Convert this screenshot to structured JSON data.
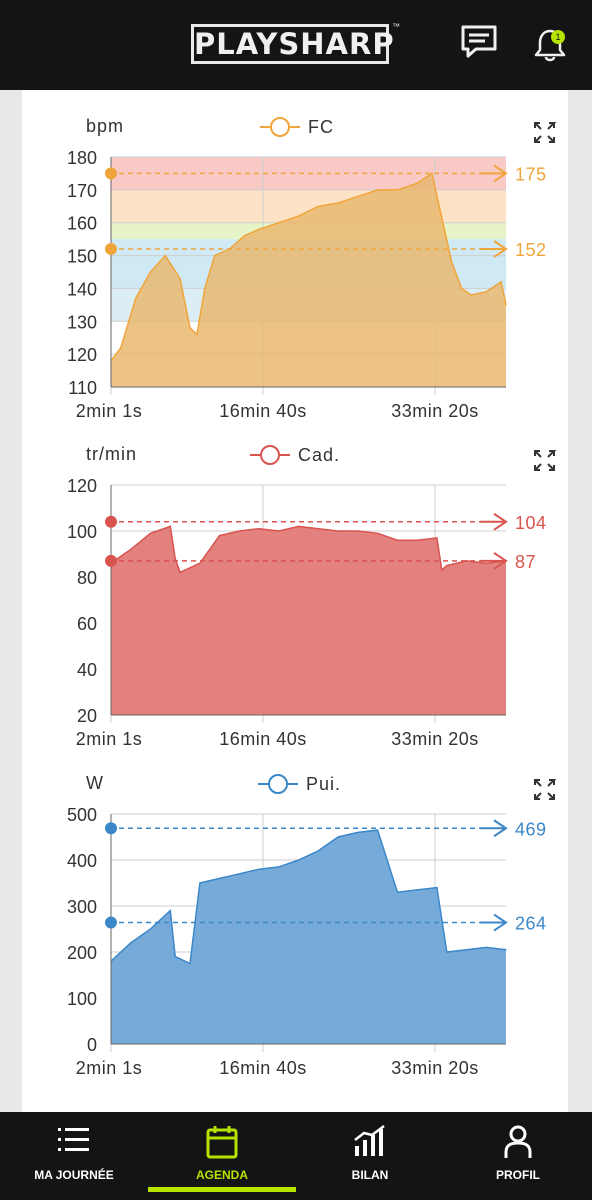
{
  "header": {
    "logo_text": "PLAYSHARP",
    "logo_tm": "™",
    "notification_count": "1",
    "icons": [
      "chat-icon",
      "bell-icon"
    ]
  },
  "charts": [
    {
      "id": "hr",
      "unit": "bpm",
      "legend": "FC",
      "color": "#f0a53a",
      "fill": "#e9b970",
      "fill_opacity": 0.85,
      "ylim": [
        110,
        180
      ],
      "yticks": [
        110,
        120,
        130,
        140,
        150,
        160,
        170,
        180
      ],
      "xticks": [
        "2min 1s",
        "16min 40s",
        "33min 20s"
      ],
      "markers": [
        {
          "value": 175,
          "label": "175"
        },
        {
          "value": 152,
          "label": "152"
        }
      ],
      "zones": [
        {
          "from": 170,
          "to": 180,
          "color": "#f9c9c6"
        },
        {
          "from": 160,
          "to": 170,
          "color": "#fde3c6"
        },
        {
          "from": 155,
          "to": 160,
          "color": "#e6f4c8"
        },
        {
          "from": 140,
          "to": 155,
          "color": "#cfeaf4"
        },
        {
          "from": 130,
          "to": 140,
          "color": "#dbeef6"
        }
      ]
    },
    {
      "id": "cad",
      "unit": "tr/min",
      "legend": "Cad.",
      "color": "#d9534f",
      "fill": "#e07a77",
      "fill_opacity": 0.95,
      "ylim": [
        20,
        120
      ],
      "yticks": [
        20,
        40,
        60,
        80,
        100,
        120
      ],
      "xticks": [
        "2min 1s",
        "16min 40s",
        "33min 20s"
      ],
      "markers": [
        {
          "value": 104,
          "label": "104"
        },
        {
          "value": 87,
          "label": "87"
        }
      ],
      "zones": []
    },
    {
      "id": "pow",
      "unit": "W",
      "legend": "Pui.",
      "color": "#3b87c8",
      "fill": "#6fa5d6",
      "fill_opacity": 0.95,
      "ylim": [
        0,
        500
      ],
      "yticks": [
        0,
        100,
        200,
        300,
        400,
        500
      ],
      "xticks": [
        "2min 1s",
        "16min 40s",
        "33min 20s"
      ],
      "markers": [
        {
          "value": 469,
          "label": "469"
        },
        {
          "value": 264,
          "label": "264"
        }
      ],
      "zones": []
    }
  ],
  "chart_data": [
    {
      "type": "area",
      "ylabel": "bpm",
      "series": [
        {
          "name": "FC",
          "x": [
            2.0,
            3.0,
            4.5,
            6.0,
            7.5,
            9.0,
            10.0,
            10.7,
            11.5,
            12.5,
            14.0,
            15.5,
            17.0,
            19.0,
            21.0,
            23.0,
            25.0,
            27.0,
            29.0,
            31.0,
            33.0,
            34.5,
            36.5,
            37.5,
            38.5,
            40.0,
            41.5,
            42.0
          ],
          "y": [
            118,
            122,
            137,
            145,
            150,
            143,
            128,
            126,
            140,
            150,
            152,
            156,
            158,
            160,
            162,
            165,
            166,
            168,
            170,
            170,
            172,
            175,
            148,
            140,
            138,
            139,
            142,
            135
          ]
        }
      ],
      "ylim": [
        110,
        180
      ],
      "yticks": [
        110,
        120,
        130,
        140,
        150,
        160,
        170,
        180
      ],
      "xticks": [
        "2min 1s",
        "16min 40s",
        "33min 20s"
      ]
    },
    {
      "type": "area",
      "ylabel": "tr/min",
      "series": [
        {
          "name": "Cad.",
          "x": [
            2.0,
            4.0,
            6.0,
            8.0,
            8.5,
            9.0,
            11.0,
            13.0,
            15.0,
            17.0,
            19.0,
            21.0,
            23.0,
            25.0,
            27.0,
            29.0,
            31.0,
            33.0,
            35.0,
            35.5,
            36.0,
            38.0,
            40.0,
            42.0
          ],
          "y": [
            86,
            92,
            99,
            102,
            88,
            82,
            86,
            98,
            100,
            101,
            100,
            102,
            101,
            100,
            100,
            99,
            96,
            96,
            97,
            83,
            85,
            87,
            86,
            87
          ]
        }
      ],
      "ylim": [
        20,
        120
      ],
      "yticks": [
        20,
        40,
        60,
        80,
        100,
        120
      ],
      "xticks": [
        "2min 1s",
        "16min 40s",
        "33min 20s"
      ]
    },
    {
      "type": "area",
      "ylabel": "W",
      "series": [
        {
          "name": "Pui.",
          "x": [
            2.0,
            4.0,
            6.0,
            8.0,
            8.5,
            10.0,
            11.0,
            13.0,
            15.0,
            17.0,
            19.0,
            21.0,
            23.0,
            25.0,
            27.0,
            29.0,
            31.0,
            33.0,
            35.0,
            36.0,
            38.0,
            40.0,
            42.0
          ],
          "y": [
            180,
            220,
            250,
            290,
            190,
            175,
            350,
            360,
            370,
            380,
            385,
            400,
            420,
            450,
            460,
            465,
            330,
            335,
            340,
            200,
            205,
            210,
            205
          ]
        }
      ],
      "ylim": [
        0,
        500
      ],
      "yticks": [
        0,
        100,
        200,
        300,
        400,
        500
      ],
      "xticks": [
        "2min 1s",
        "16min 40s",
        "33min 20s"
      ]
    }
  ],
  "nav": [
    {
      "label": "MA JOURNÉE",
      "icon": "list-icon"
    },
    {
      "label": "AGENDA",
      "icon": "calendar-icon",
      "active": true
    },
    {
      "label": "BILAN",
      "icon": "bar-chart-icon"
    },
    {
      "label": "PROFIL",
      "icon": "person-icon"
    }
  ]
}
